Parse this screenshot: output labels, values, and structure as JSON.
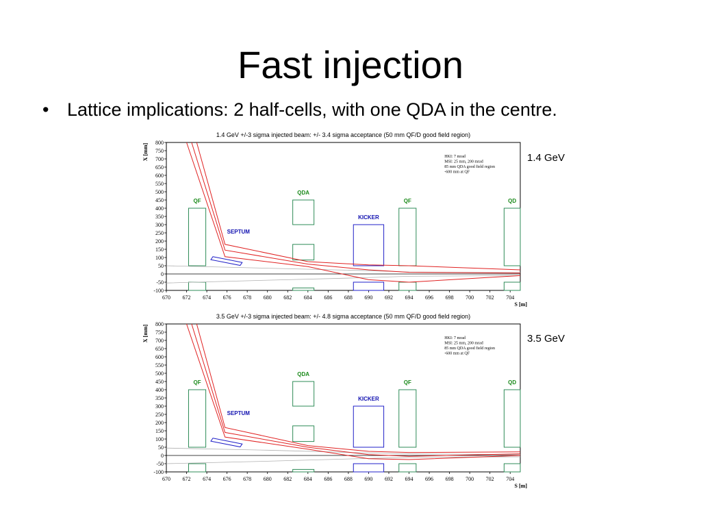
{
  "slide": {
    "title": "Fast injection",
    "bullet_marker": "•",
    "bullet_text": "Lattice implications: 2 half-cells, with one QDA in the centre."
  },
  "chart_data": [
    {
      "type": "line",
      "title": "1.4 GeV +/-3 sigma injected beam: +/- 3.4 sigma acceptance (50 mm QF/D good field region)",
      "side_label": "1.4 GeV",
      "xlabel": "S [m]",
      "ylabel": "X [mm]",
      "xlim": [
        670,
        705
      ],
      "ylim": [
        -100,
        800
      ],
      "xticks": [
        670,
        672,
        674,
        676,
        678,
        680,
        682,
        684,
        686,
        688,
        690,
        692,
        694,
        696,
        698,
        700,
        702,
        704
      ],
      "yticks": [
        -100,
        -50,
        0,
        50,
        100,
        150,
        200,
        250,
        300,
        350,
        400,
        450,
        500,
        550,
        600,
        650,
        700,
        750,
        800
      ],
      "annotation_lines": [
        "HKI: 7 mrad",
        "MSI: 25 mm, 200 mrad",
        "85 mm QDA good field region",
        "-600 mm at QF"
      ],
      "elements": [
        {
          "label": "QF",
          "label_color": "#1a8a1a",
          "color": "#2e8b57",
          "rects": [
            [
              672.2,
              673.9,
              50,
              400
            ],
            [
              672.2,
              673.9,
              -100,
              -50
            ]
          ]
        },
        {
          "label": "QDA",
          "label_color": "#1a8a1a",
          "color": "#2e8b57",
          "rects": [
            [
              682.5,
              684.6,
              300,
              450
            ],
            [
              682.5,
              684.6,
              85,
              180
            ],
            [
              682.5,
              684.6,
              -100,
              -85
            ]
          ]
        },
        {
          "label": "KICKER",
          "label_color": "#1010b0",
          "color": "#1f1fc8",
          "rects": [
            [
              688.5,
              691.5,
              50,
              300
            ],
            [
              688.5,
              691.5,
              -100,
              -50
            ]
          ]
        },
        {
          "label": "QF",
          "label_color": "#1a8a1a",
          "color": "#2e8b57",
          "rects": [
            [
              693.0,
              694.7,
              50,
              400
            ],
            [
              693.0,
              694.7,
              -100,
              -50
            ]
          ]
        },
        {
          "label": "QD",
          "label_color": "#1a8a1a",
          "color": "#2e8b57",
          "rects": [
            [
              703.4,
              705.0,
              50,
              400
            ],
            [
              703.4,
              705.0,
              -100,
              -50
            ]
          ]
        }
      ],
      "septum": {
        "label": "SEPTUM",
        "color": "#1f1fc8",
        "polygon": [
          [
            674.6,
            105
          ],
          [
            677.5,
            70
          ],
          [
            677.3,
            52
          ],
          [
            674.4,
            87
          ]
        ]
      },
      "series": [
        {
          "values": [
            [
              673.0,
              800
            ],
            [
              675.8,
              180
            ],
            [
              684,
              75
            ],
            [
              690,
              55
            ],
            [
              694,
              50
            ],
            [
              705,
              25
            ]
          ]
        },
        {
          "values": [
            [
              672.5,
              800
            ],
            [
              675.8,
              145
            ],
            [
              684,
              60
            ],
            [
              690,
              25
            ],
            [
              694,
              10
            ],
            [
              705,
              5
            ]
          ]
        },
        {
          "values": [
            [
              672.0,
              800
            ],
            [
              675.8,
              105
            ],
            [
              684,
              45
            ],
            [
              690,
              -35
            ],
            [
              694,
              -50
            ],
            [
              705,
              -10
            ]
          ]
        }
      ],
      "envelope": [
        {
          "values": [
            [
              670,
              50
            ],
            [
              680,
              35
            ],
            [
              690,
              20
            ],
            [
              694,
              12
            ],
            [
              705,
              8
            ]
          ]
        },
        {
          "values": [
            [
              670,
              -55
            ],
            [
              680,
              -38
            ],
            [
              690,
              -22
            ],
            [
              694,
              -14
            ],
            [
              705,
              -10
            ]
          ]
        }
      ]
    },
    {
      "type": "line",
      "title": "3.5 GeV +/-3 sigma injected beam: +/- 4.8 sigma acceptance (50 mm QF/D good field region)",
      "side_label": "3.5 GeV",
      "xlabel": "S [m]",
      "ylabel": "X [mm]",
      "xlim": [
        670,
        705
      ],
      "ylim": [
        -100,
        800
      ],
      "xticks": [
        670,
        672,
        674,
        676,
        678,
        680,
        682,
        684,
        686,
        688,
        690,
        692,
        694,
        696,
        698,
        700,
        702,
        704
      ],
      "yticks": [
        -100,
        -50,
        0,
        50,
        100,
        150,
        200,
        250,
        300,
        350,
        400,
        450,
        500,
        550,
        600,
        650,
        700,
        750,
        800
      ],
      "annotation_lines": [
        "HKI: 7 mrad",
        "MSI: 25 mm, 200 mrad",
        "85 mm QDA good field region",
        "-600 mm at QF"
      ],
      "elements": [
        {
          "label": "QF",
          "label_color": "#1a8a1a",
          "color": "#2e8b57",
          "rects": [
            [
              672.2,
              673.9,
              50,
              400
            ],
            [
              672.2,
              673.9,
              -100,
              -50
            ]
          ]
        },
        {
          "label": "QDA",
          "label_color": "#1a8a1a",
          "color": "#2e8b57",
          "rects": [
            [
              682.5,
              684.6,
              300,
              450
            ],
            [
              682.5,
              684.6,
              85,
              180
            ],
            [
              682.5,
              684.6,
              -100,
              -85
            ]
          ]
        },
        {
          "label": "KICKER",
          "label_color": "#1010b0",
          "color": "#1f1fc8",
          "rects": [
            [
              688.5,
              691.5,
              50,
              300
            ],
            [
              688.5,
              691.5,
              -100,
              -50
            ]
          ]
        },
        {
          "label": "QF",
          "label_color": "#1a8a1a",
          "color": "#2e8b57",
          "rects": [
            [
              693.0,
              694.7,
              50,
              400
            ],
            [
              693.0,
              694.7,
              -100,
              -50
            ]
          ]
        },
        {
          "label": "QD",
          "label_color": "#1a8a1a",
          "color": "#2e8b57",
          "rects": [
            [
              703.4,
              705.0,
              50,
              400
            ],
            [
              703.4,
              705.0,
              -100,
              -50
            ]
          ]
        }
      ],
      "septum": {
        "label": "SEPTUM",
        "color": "#1f1fc8",
        "polygon": [
          [
            674.6,
            105
          ],
          [
            677.5,
            70
          ],
          [
            677.3,
            52
          ],
          [
            674.4,
            87
          ]
        ]
      },
      "series": [
        {
          "values": [
            [
              673.0,
              800
            ],
            [
              675.8,
              170
            ],
            [
              684,
              60
            ],
            [
              690,
              25
            ],
            [
              694,
              18
            ],
            [
              705,
              22
            ]
          ]
        },
        {
          "values": [
            [
              672.5,
              800
            ],
            [
              675.8,
              140
            ],
            [
              684,
              50
            ],
            [
              690,
              5
            ],
            [
              694,
              -5
            ],
            [
              705,
              10
            ]
          ]
        },
        {
          "values": [
            [
              672.0,
              800
            ],
            [
              675.8,
              112
            ],
            [
              684,
              38
            ],
            [
              690,
              -20
            ],
            [
              694,
              -25
            ],
            [
              705,
              0
            ]
          ]
        }
      ],
      "envelope": [
        {
          "values": [
            [
              670,
              45
            ],
            [
              680,
              32
            ],
            [
              690,
              15
            ],
            [
              694,
              10
            ],
            [
              705,
              5
            ]
          ]
        },
        {
          "values": [
            [
              670,
              -50
            ],
            [
              680,
              -35
            ],
            [
              690,
              -18
            ],
            [
              694,
              -12
            ],
            [
              705,
              -8
            ]
          ]
        }
      ]
    }
  ]
}
